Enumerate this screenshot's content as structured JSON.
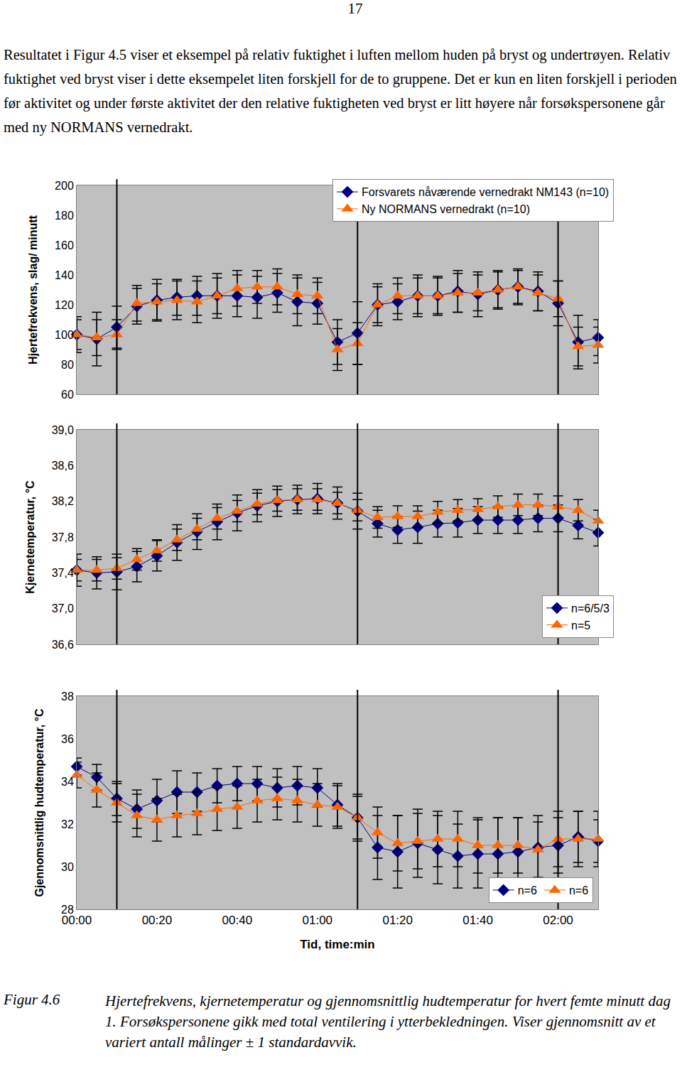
{
  "page_number": "17",
  "paragraph": "Resultatet i Figur 4.5 viser et eksempel på relativ fuktighet i luften mellom huden på bryst og undertrøyen. Relativ fuktighet ved bryst viser i dette eksempelet liten forskjell for de to gruppene. Det er kun en liten forskjell i perioden før aktivitet og under første aktivitet der den relative fuktigheten ved bryst er litt høyere når forsøkspersonene går med ny NORMANS vernedrakt.",
  "chart_data": [
    {
      "type": "line",
      "ylabel": "Hjertefrekvens, slag/ minutt",
      "x": [
        0,
        5,
        10,
        15,
        20,
        25,
        30,
        35,
        40,
        45,
        50,
        55,
        60,
        65,
        70,
        75,
        80,
        85,
        90,
        95,
        100,
        105,
        110,
        115,
        120,
        125,
        130
      ],
      "xlim": [
        0,
        130
      ],
      "ylim": [
        60,
        200
      ],
      "yticks": [
        60,
        80,
        100,
        120,
        140,
        160,
        180,
        200
      ],
      "grid": false,
      "legend": "top right",
      "tick_labels": "y",
      "vlines": [
        10,
        70,
        120
      ],
      "series": [
        {
          "name": "Forsvarets nåværende vernedrakt NM143 (n=10)",
          "color": "#000080",
          "marker": "diamond",
          "values": [
            100,
            97,
            105,
            119,
            123,
            125,
            126,
            126,
            126,
            125,
            128,
            122,
            121,
            95,
            101,
            120,
            122,
            126,
            126,
            129,
            127,
            130,
            132,
            129,
            121,
            95,
            98
          ],
          "errors": [
            12,
            18,
            14,
            12,
            14,
            12,
            13,
            15,
            14,
            14,
            13,
            16,
            14,
            15,
            21,
            14,
            12,
            14,
            13,
            14,
            15,
            13,
            12,
            13,
            15,
            18,
            12
          ]
        },
        {
          "name": "Ny NORMANS vernedrakt (n=10)",
          "color": "#ff6600",
          "marker": "triangle-up",
          "values": [
            100,
            98,
            100,
            121,
            122,
            123,
            122,
            126,
            131,
            132,
            132,
            127,
            126,
            90,
            94,
            120,
            126,
            126,
            126,
            128,
            128,
            130,
            132,
            128,
            124,
            92,
            93
          ],
          "errors": [
            10,
            12,
            10,
            12,
            12,
            13,
            14,
            12,
            12,
            11,
            12,
            13,
            12,
            14,
            14,
            12,
            12,
            12,
            12,
            13,
            12,
            12,
            11,
            12,
            12,
            13,
            12
          ]
        }
      ]
    },
    {
      "type": "line",
      "ylabel": "Kjernetemperatur, °C",
      "x": [
        0,
        5,
        10,
        15,
        20,
        25,
        30,
        35,
        40,
        45,
        50,
        55,
        60,
        65,
        70,
        75,
        80,
        85,
        90,
        95,
        100,
        105,
        110,
        115,
        120,
        125,
        130
      ],
      "xlim": [
        0,
        130
      ],
      "ylim": [
        36.6,
        39.0
      ],
      "yticks": [
        {
          "value": 36.6,
          "label": "36,6"
        },
        {
          "value": 37.0,
          "label": "37,0"
        },
        {
          "value": 37.4,
          "label": "37,4"
        },
        {
          "value": 37.8,
          "label": "37,8"
        },
        {
          "value": 38.2,
          "label": "38,2"
        },
        {
          "value": 38.6,
          "label": "38,6"
        },
        {
          "value": 39.0,
          "label": "39,0"
        }
      ],
      "grid": false,
      "legend": "bottom right",
      "tick_labels": "y",
      "vlines": [
        10,
        70,
        120
      ],
      "series": [
        {
          "name": "n=6/5/3",
          "color": "#000080",
          "marker": "diamond",
          "values": [
            37.43,
            37.4,
            37.41,
            37.47,
            37.59,
            37.74,
            37.86,
            37.97,
            38.07,
            38.15,
            38.2,
            38.22,
            38.23,
            38.18,
            38.09,
            37.95,
            37.88,
            37.91,
            37.95,
            37.96,
            37.99,
            37.99,
            37.99,
            38.01,
            38.01,
            37.93,
            37.85
          ],
          "errors": [
            0.18,
            0.18,
            0.2,
            0.17,
            0.17,
            0.2,
            0.2,
            0.2,
            0.2,
            0.18,
            0.17,
            0.16,
            0.17,
            0.18,
            0.2,
            0.15,
            0.15,
            0.18,
            0.15,
            0.16,
            0.15,
            0.15,
            0.15,
            0.15,
            0.15,
            0.15,
            0.15
          ]
        },
        {
          "name": "n=5",
          "color": "#ff6600",
          "marker": "triangle-up",
          "values": [
            37.43,
            37.43,
            37.45,
            37.55,
            37.65,
            37.77,
            37.89,
            38.01,
            38.09,
            38.17,
            38.21,
            38.22,
            38.22,
            38.18,
            38.1,
            38.02,
            38.03,
            38.03,
            38.08,
            38.1,
            38.11,
            38.14,
            38.16,
            38.16,
            38.14,
            38.1,
            37.98
          ],
          "errors": [
            0.12,
            0.12,
            0.12,
            0.12,
            0.12,
            0.12,
            0.12,
            0.12,
            0.12,
            0.12,
            0.12,
            0.12,
            0.12,
            0.12,
            0.12,
            0.12,
            0.12,
            0.12,
            0.12,
            0.12,
            0.12,
            0.12,
            0.12,
            0.12,
            0.12,
            0.12,
            0.12
          ]
        }
      ]
    },
    {
      "type": "line",
      "ylabel": "Gjennomsnittlig hudtemperatur, °C",
      "xlabel": "Tid, time:min",
      "x": [
        0,
        5,
        10,
        15,
        20,
        25,
        30,
        35,
        40,
        45,
        50,
        55,
        60,
        65,
        70,
        75,
        80,
        85,
        90,
        95,
        100,
        105,
        110,
        115,
        120,
        125,
        130
      ],
      "xlim": [
        0,
        130
      ],
      "xticks": [
        {
          "value": 0,
          "label": "00:00"
        },
        {
          "value": 20,
          "label": "00:20"
        },
        {
          "value": 40,
          "label": "00:40"
        },
        {
          "value": 60,
          "label": "01:00"
        },
        {
          "value": 80,
          "label": "01:20"
        },
        {
          "value": 100,
          "label": "01:40"
        },
        {
          "value": 120,
          "label": "02:00"
        }
      ],
      "ylim": [
        28,
        38
      ],
      "yticks": [
        28,
        30,
        32,
        34,
        36,
        38
      ],
      "grid": false,
      "legend": "bottom right",
      "vlines": [
        10,
        70,
        120
      ],
      "series": [
        {
          "name": "n=6",
          "color": "#000080",
          "marker": "diamond",
          "values": [
            34.7,
            34.2,
            33.2,
            32.7,
            33.1,
            33.5,
            33.5,
            33.8,
            33.9,
            33.9,
            33.7,
            33.8,
            33.7,
            32.9,
            32.3,
            30.9,
            30.7,
            31.1,
            30.8,
            30.5,
            30.6,
            30.6,
            30.7,
            30.9,
            31.0,
            31.4,
            31.2
          ],
          "errors": [
            0.4,
            0.6,
            0.8,
            0.9,
            1.0,
            1.0,
            0.9,
            0.8,
            0.8,
            0.8,
            0.9,
            0.9,
            0.9,
            1.0,
            1.1,
            1.5,
            1.7,
            1.6,
            1.6,
            1.5,
            1.6,
            1.7,
            1.6,
            1.5,
            1.3,
            1.2,
            1.0
          ]
        },
        {
          "name": "n=6",
          "color": "#ff6600",
          "marker": "triangle-up",
          "values": [
            34.3,
            33.6,
            33.0,
            32.4,
            32.2,
            32.4,
            32.5,
            32.7,
            32.8,
            33.1,
            33.2,
            33.1,
            32.9,
            32.8,
            32.3,
            31.6,
            31.1,
            31.2,
            31.3,
            31.3,
            31.0,
            31.0,
            31.0,
            30.8,
            31.3,
            31.3,
            31.3
          ],
          "errors": [
            0.6,
            0.8,
            0.9,
            1.0,
            1.0,
            1.0,
            1.0,
            1.0,
            1.0,
            1.0,
            1.0,
            1.0,
            1.0,
            1.0,
            1.0,
            1.2,
            1.3,
            1.3,
            1.3,
            1.3,
            1.3,
            1.3,
            1.3,
            1.3,
            1.3,
            1.3,
            1.3
          ]
        }
      ]
    }
  ],
  "caption": {
    "label": "Figur 4.6",
    "text": "Hjertefrekvens, kjernetemperatur og gjennomsnittlig hudtemperatur for hvert femte minutt dag 1. Forsøkspersonene gikk med total ventilering i ytterbekledningen. Viser gjennomsnitt av et variert antall målinger ± 1 standardavvik."
  }
}
